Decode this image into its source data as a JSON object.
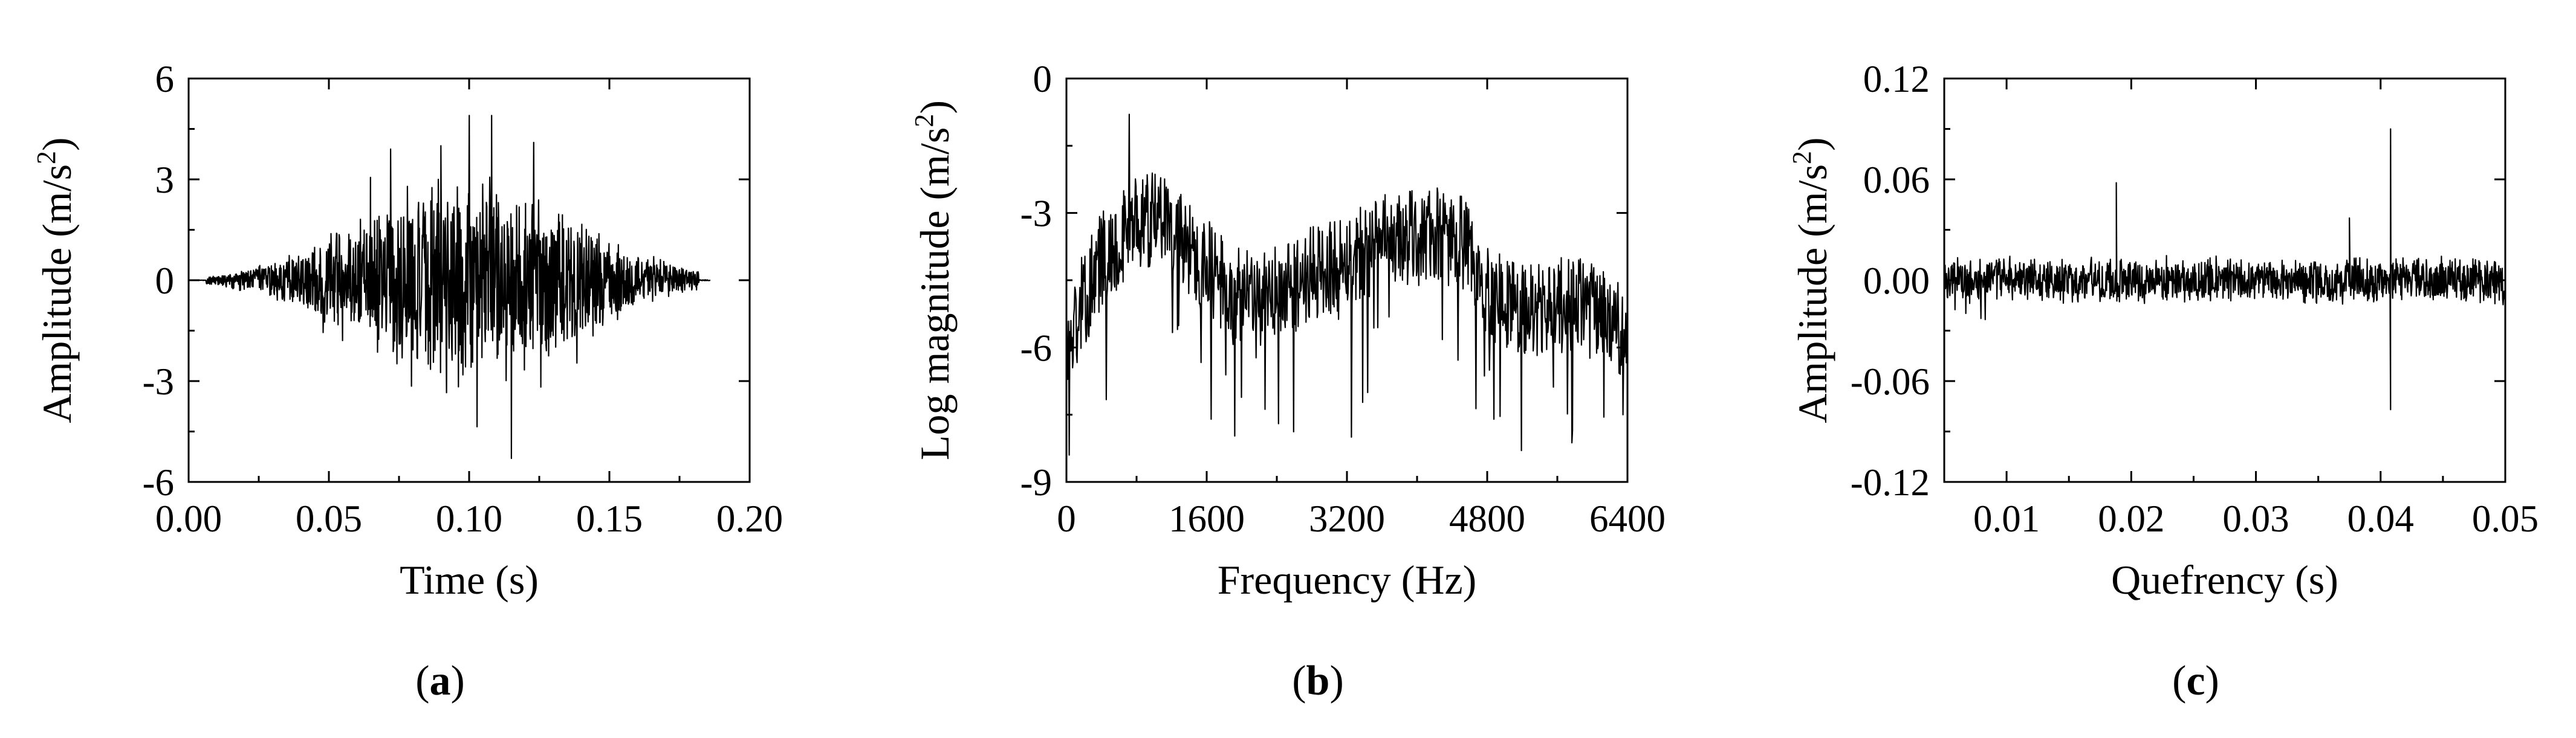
{
  "chart_data": [
    {
      "type": "line",
      "panel": "(a)",
      "panel_letter": "a",
      "xlabel": "Time (s)",
      "ylabel": "Amplitude (m/s",
      "ylabel_sup": "2",
      "ylabel_close": ")",
      "xlim": [
        0.0,
        0.2
      ],
      "ylim": [
        -6,
        6
      ],
      "xticks": [
        "0.00",
        "0.05",
        "0.10",
        "0.15",
        "0.20"
      ],
      "yticks": [
        "-6",
        "-3",
        "0",
        "3",
        "6"
      ],
      "xtick_values": [
        0.0,
        0.05,
        0.1,
        0.15,
        0.2
      ],
      "ytick_values": [
        -6,
        -3,
        0,
        3,
        6
      ],
      "grid": false,
      "series": [
        {
          "x_start": 0.0,
          "x_end": 0.186,
          "envelope_peak_time": 0.1,
          "envelope_peak_amplitude": 4.9,
          "max_value": 4.9,
          "min_value": -5.3,
          "min_at": 0.115
        }
      ]
    },
    {
      "type": "line",
      "panel": "(b)",
      "panel_letter": "b",
      "xlabel": "Frequency (Hz)",
      "ylabel": "Log magnitude (m/s",
      "ylabel_sup": "2",
      "ylabel_close": ")",
      "xlim": [
        0,
        6400
      ],
      "ylim": [
        -9,
        0
      ],
      "xticks": [
        "0",
        "1600",
        "3200",
        "4800",
        "6400"
      ],
      "yticks": [
        "-9",
        "-6",
        "-3",
        "0"
      ],
      "xtick_values": [
        0,
        1600,
        3200,
        4800,
        6400
      ],
      "ytick_values": [
        -9,
        -6,
        -3,
        0
      ],
      "grid": false,
      "series": [
        {
          "anchors_x": [
            0,
            150,
            400,
            600,
            800,
            1100,
            1300,
            1600,
            1900,
            2200,
            2600,
            3000,
            3400,
            3800,
            4200,
            4500,
            4700,
            5000,
            5400,
            5800,
            6100,
            6400
          ],
          "anchors_y": [
            -6.2,
            -5.2,
            -4.0,
            -3.6,
            -3.2,
            -3.1,
            -3.6,
            -4.2,
            -4.8,
            -5.0,
            -4.6,
            -4.2,
            -3.8,
            -3.6,
            -3.5,
            -3.6,
            -4.5,
            -5.0,
            -5.2,
            -5.0,
            -5.3,
            -5.8
          ],
          "max_value": -0.8,
          "max_at": 720,
          "min_value": -8.4,
          "min_at": 30
        }
      ]
    },
    {
      "type": "line",
      "panel": "(c)",
      "panel_letter": "c",
      "xlabel": "Quefrency (s)",
      "ylabel": "Amplitude (m/s",
      "ylabel_sup": "2",
      "ylabel_close": ")",
      "xlim": [
        0.005,
        0.05
      ],
      "ylim": [
        -0.12,
        0.12
      ],
      "xticks": [
        "0.01",
        "0.02",
        "0.03",
        "0.04",
        "0.05"
      ],
      "yticks": [
        "-0.12",
        "-0.06",
        "0.00",
        "0.06",
        "0.12"
      ],
      "xtick_values": [
        0.01,
        0.02,
        0.03,
        0.04,
        0.05
      ],
      "ytick_values": [
        -0.12,
        -0.06,
        0.0,
        0.06,
        0.12
      ],
      "grid": false,
      "series": [
        {
          "baseline": 0.0,
          "noise_amplitude": 0.015,
          "spikes": [
            {
              "x": 0.0188,
              "y": 0.058
            },
            {
              "x": 0.0408,
              "y": 0.09
            },
            {
              "x": 0.0408,
              "y": -0.077
            },
            {
              "x": 0.0375,
              "y": 0.037
            }
          ]
        }
      ]
    }
  ],
  "colors": {
    "line": "#000000",
    "axes": "#000000",
    "background": "#ffffff"
  }
}
